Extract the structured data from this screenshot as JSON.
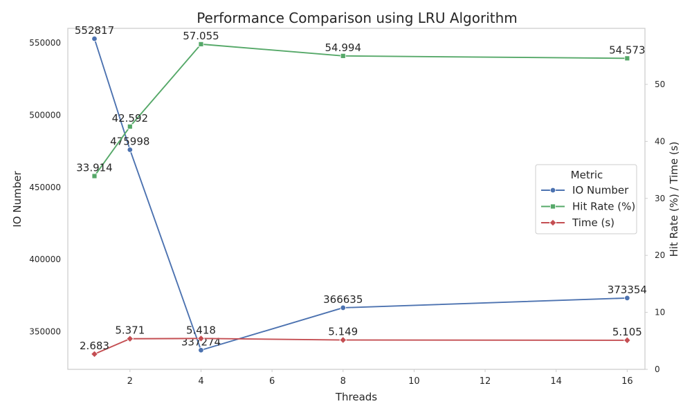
{
  "chart_data": {
    "type": "line",
    "title": "Performance Comparison using LRU Algorithm",
    "xlabel": "Threads",
    "ylabel_left": "IO Number",
    "ylabel_right": "Hit Rate (%) / Time (s)",
    "x": [
      1,
      2,
      4,
      8,
      16
    ],
    "xlim": [
      0.25,
      16.5
    ],
    "x_ticks": [
      2,
      4,
      6,
      8,
      10,
      12,
      14,
      16
    ],
    "ylim_left": [
      324000,
      560000
    ],
    "y_ticks_left": [
      350000,
      400000,
      450000,
      500000,
      550000
    ],
    "ylim_right": [
      0,
      59.83
    ],
    "y_ticks_right": [
      0,
      10,
      20,
      30,
      40,
      50
    ],
    "grid": false,
    "legend": {
      "title": "Metric",
      "placement": "center-right"
    },
    "series": [
      {
        "name": "IO Number",
        "axis": "left",
        "marker": "circle",
        "color": "#4c72b0",
        "values": [
          552817,
          475998,
          337274,
          366635,
          373354
        ],
        "labels": [
          "552817",
          "475998",
          "337274",
          "366635",
          "373354"
        ]
      },
      {
        "name": "Hit Rate (%)",
        "axis": "right",
        "marker": "square",
        "color": "#55a868",
        "values": [
          33.914,
          42.592,
          57.055,
          54.994,
          54.573
        ],
        "labels": [
          "33.914",
          "42.592",
          "57.055",
          "54.994",
          "54.573"
        ]
      },
      {
        "name": "Time (s)",
        "axis": "right",
        "marker": "diamond",
        "color": "#c44e52",
        "values": [
          2.683,
          5.371,
          5.418,
          5.149,
          5.105
        ],
        "labels": [
          "2.683",
          "5.371",
          "5.418",
          "5.149",
          "5.105"
        ]
      }
    ]
  }
}
